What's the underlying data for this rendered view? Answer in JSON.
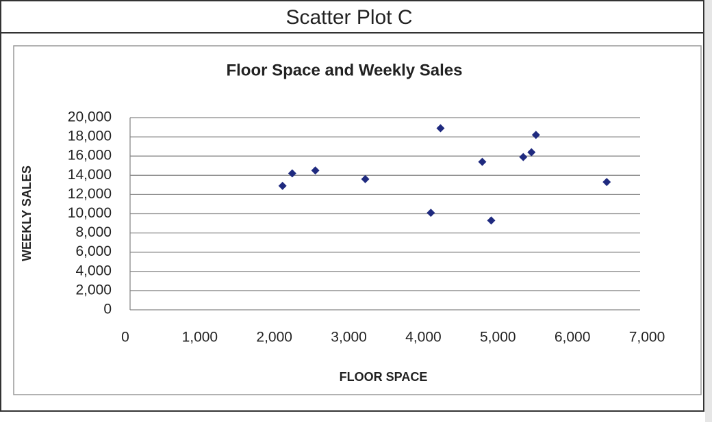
{
  "header": {
    "title": "Scatter Plot C"
  },
  "chart_data": {
    "type": "scatter",
    "title": "Floor Space and Weekly Sales",
    "x_label": "FLOOR SPACE",
    "y_label": "WEEKLY SALES",
    "series": [
      {
        "color": "#1f2a7f",
        "x": [
          2110,
          2240,
          2550,
          3220,
          4100,
          4230,
          4790,
          4910,
          5340,
          5450,
          5510,
          6460
        ],
        "values": [
          12900,
          14200,
          14500,
          13600,
          10100,
          18900,
          15400,
          9300,
          15900,
          16400,
          18200,
          13300
        ]
      }
    ],
    "xlim": [
      0,
      7000
    ],
    "xticks": [
      0,
      {
        "value": 1000,
        "label": "1,000"
      },
      {
        "value": 2000,
        "label": "2,000"
      },
      {
        "value": 3000,
        "label": "3,000"
      },
      {
        "value": 4000,
        "label": "4,000"
      },
      {
        "value": 5000,
        "label": "5,000"
      },
      {
        "value": 6000,
        "label": "6,000"
      },
      {
        "value": 7000,
        "label": "7,000"
      }
    ],
    "ylim": [
      0,
      20000
    ],
    "yticks": [
      0,
      {
        "value": 2000,
        "label": "2,000"
      },
      {
        "value": 4000,
        "label": "4,000"
      },
      {
        "value": 6000,
        "label": "6,000"
      },
      {
        "value": 8000,
        "label": "8,000"
      },
      {
        "value": 10000,
        "label": "10,000"
      },
      {
        "value": 12000,
        "label": "12,000"
      },
      {
        "value": 14000,
        "label": "14,000"
      },
      {
        "value": 16000,
        "label": "16,000"
      },
      {
        "value": 18000,
        "label": "18,000"
      },
      {
        "value": 20000,
        "label": "20,000"
      }
    ],
    "grid": true
  }
}
